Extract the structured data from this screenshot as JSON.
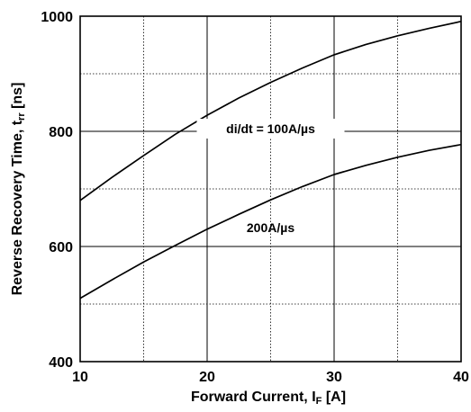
{
  "chart_data": {
    "type": "line",
    "xlabel": "Forward Current, I",
    "xlabel_sub": "F",
    "xlabel_tail": " [A]",
    "ylabel": "Reverse Recovery Time, t",
    "ylabel_sub": "rr",
    "ylabel_tail": " [ns]",
    "xlim": [
      10,
      40
    ],
    "ylim": [
      400,
      1000
    ],
    "xticks": [
      10,
      20,
      30,
      40
    ],
    "yticks": [
      400,
      600,
      800,
      1000
    ],
    "x_minor_grid": [
      15,
      25,
      35
    ],
    "y_minor_grid": [
      500,
      700,
      900
    ],
    "grid": true,
    "series": [
      {
        "name": "di/dt = 100A/µs",
        "x": [
          10,
          12.5,
          15,
          17.5,
          20,
          22.5,
          25,
          27.5,
          30,
          32.5,
          35,
          37.5,
          40
        ],
        "y": [
          680,
          720,
          758,
          795,
          828,
          858,
          885,
          910,
          933,
          951,
          966,
          979,
          991
        ]
      },
      {
        "name": "200A/µs",
        "x": [
          10,
          12.5,
          15,
          17.5,
          20,
          22.5,
          25,
          27.5,
          30,
          32.5,
          35,
          37.5,
          40
        ],
        "y": [
          510,
          542,
          573,
          602,
          630,
          656,
          681,
          704,
          725,
          741,
          755,
          767,
          777
        ]
      }
    ]
  }
}
